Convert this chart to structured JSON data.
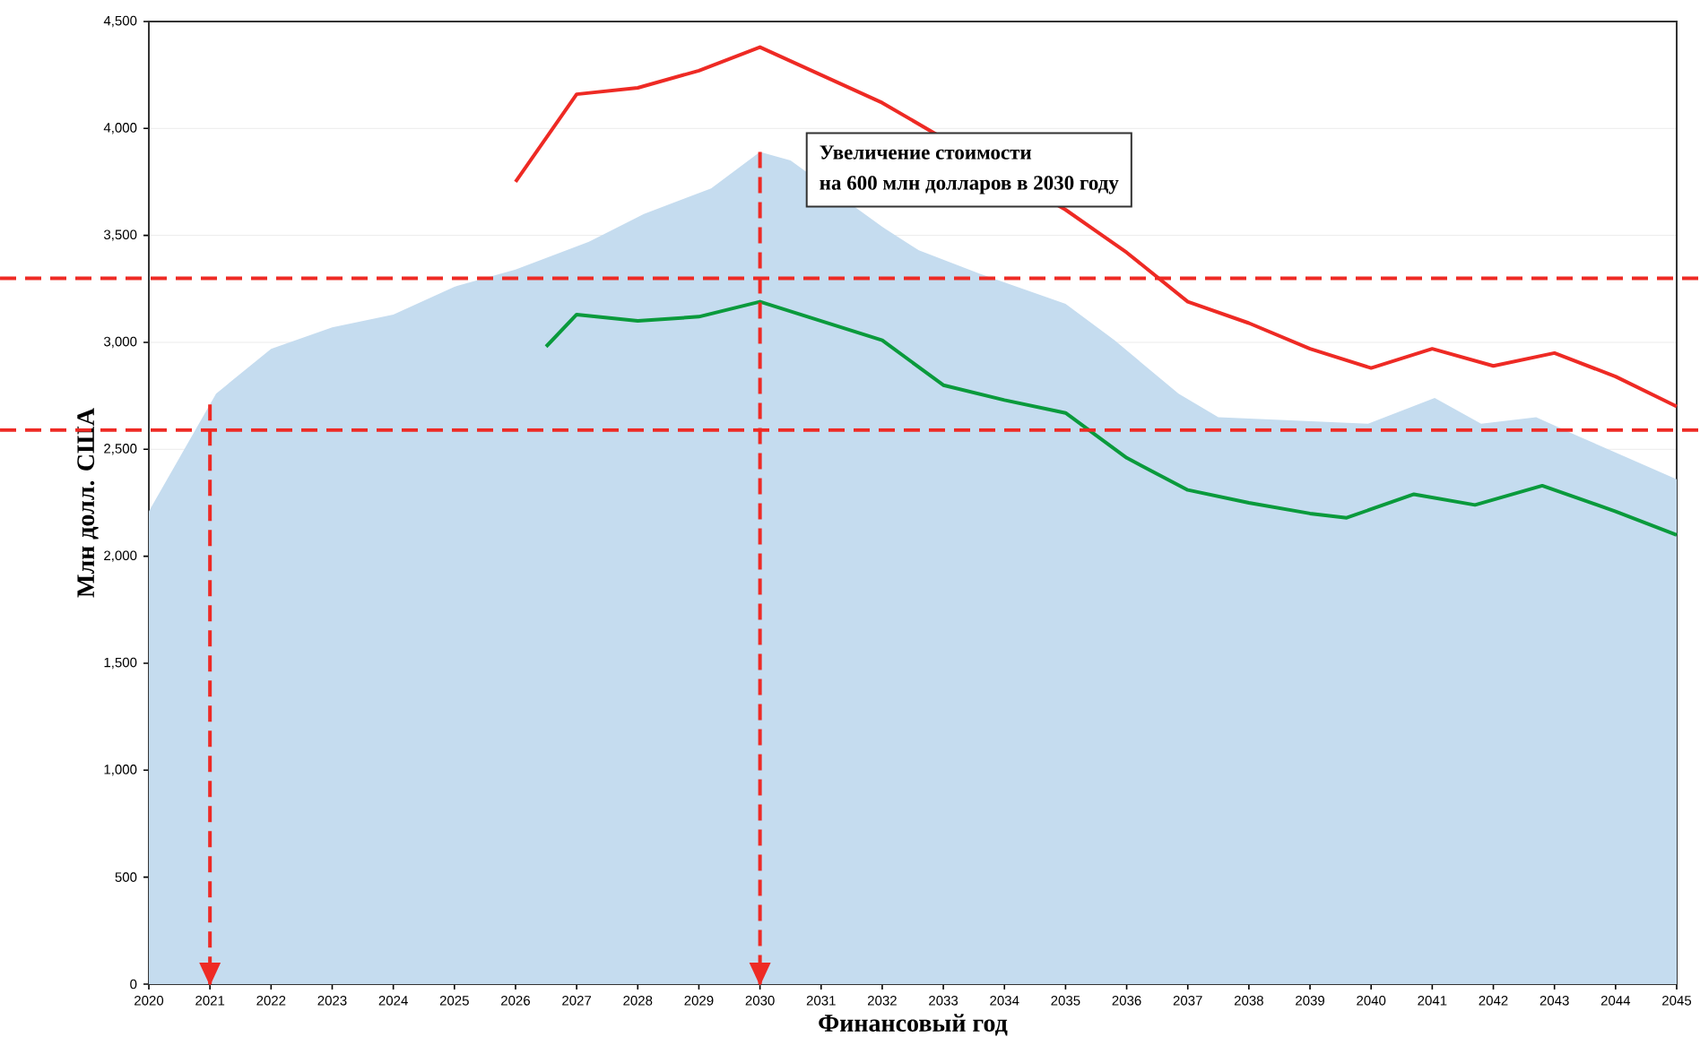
{
  "chart_data": {
    "type": "line",
    "xlabel": "Финансовый год",
    "ylabel": "Млн долл. США",
    "annotations": [
      "Увеличение стоимости",
      "на 600 млн  долларов в 2030 году"
    ],
    "xlim": [
      2020,
      2045
    ],
    "ylim": [
      0,
      4500
    ],
    "xticks": [
      2020,
      2021,
      2022,
      2023,
      2024,
      2025,
      2026,
      2027,
      2028,
      2029,
      2030,
      2031,
      2032,
      2033,
      2034,
      2035,
      2036,
      2037,
      2038,
      2039,
      2040,
      2041,
      2042,
      2043,
      2044,
      2045
    ],
    "yticks": [
      {
        "value": 0,
        "label": "0"
      },
      {
        "value": 500,
        "label": "500"
      },
      {
        "value": 1000,
        "label": "1,000"
      },
      {
        "value": 1500,
        "label": "1,500"
      },
      {
        "value": 2000,
        "label": "2,000"
      },
      {
        "value": 2500,
        "label": "2,500"
      },
      {
        "value": 3000,
        "label": "3,000"
      },
      {
        "value": 3500,
        "label": "3,500"
      },
      {
        "value": 4000,
        "label": "4,000"
      },
      {
        "value": 4500,
        "label": "4,500"
      }
    ],
    "grid": "y",
    "series": [
      {
        "type": "area",
        "color": "#c5dcef",
        "x": [
          2020,
          2021.1,
          2022,
          2023,
          2024,
          2025,
          2026,
          2027.2,
          2028.1,
          2029.2,
          2030,
          2030.5,
          2031,
          2032,
          2032.6,
          2033.6,
          2035,
          2035.8,
          2036.85,
          2037.5,
          2039.95,
          2041.04,
          2041.8,
          2042.7,
          2043.4,
          2045
        ],
        "values": [
          2210,
          2760,
          2970,
          3070,
          3130,
          3260,
          3340,
          3470,
          3600,
          3720,
          3890,
          3850,
          null,
          3540,
          3430,
          3320,
          3180,
          3010,
          2760,
          2650,
          2620,
          2740,
          2620,
          2650,
          2560,
          2360
        ]
      },
      {
        "color": "#ee2a24",
        "x": [
          2026,
          2027,
          2028,
          2029,
          2030,
          2031,
          2032,
          2033,
          2034,
          2035,
          2036,
          2037,
          2038,
          2039,
          2040,
          2041,
          2042,
          2043,
          2044,
          2045
        ],
        "values": [
          3750,
          4160,
          4190,
          4270,
          4380,
          4250,
          4120,
          null,
          null,
          3620,
          3420,
          3190,
          3090,
          2970,
          2880,
          2970,
          2890,
          2950,
          2840,
          2700
        ]
      },
      {
        "color": "#0a9a3c",
        "x": [
          2026.5,
          2027,
          2028,
          2029,
          2030,
          2031,
          2032,
          2033,
          2034,
          2035,
          2036,
          2037,
          2038,
          2039,
          2039.6,
          2040.7,
          2041.7,
          2042.8,
          2044,
          2045
        ],
        "values": [
          2980,
          3130,
          3100,
          3120,
          3190,
          3100,
          3010,
          2800,
          2730,
          2670,
          2460,
          2310,
          2250,
          2200,
          2180,
          2290,
          2240,
          2330,
          2210,
          2100
        ]
      }
    ],
    "ref_lines": [
      {
        "axis": "y",
        "value": 3300,
        "color": "#ee2a24",
        "line_style": "dashed"
      },
      {
        "axis": "y",
        "value": 2590,
        "color": "#ee2a24",
        "line_style": "dashed"
      },
      {
        "axis": "x",
        "value": 2021,
        "color": "#ee2a24",
        "line_style": "dashed"
      },
      {
        "axis": "x",
        "value": 2030,
        "color": "#ee2a24",
        "line_style": "dashed"
      }
    ]
  }
}
